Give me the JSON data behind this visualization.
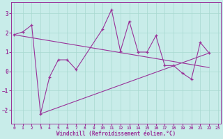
{
  "main_x": [
    0,
    1,
    2,
    3,
    4,
    5,
    6,
    7,
    10,
    11,
    12,
    13,
    14,
    15,
    16,
    17,
    18,
    19,
    20,
    21,
    22
  ],
  "main_y": [
    1.9,
    2.05,
    2.4,
    -2.2,
    -0.3,
    0.6,
    0.6,
    0.1,
    2.2,
    3.2,
    1.05,
    2.6,
    1.0,
    1.0,
    1.85,
    0.3,
    0.3,
    -0.1,
    -0.4,
    1.5,
    0.95
  ],
  "trend1_x": [
    0,
    22
  ],
  "trend1_y": [
    1.9,
    0.2
  ],
  "trend2_x": [
    3,
    22
  ],
  "trend2_y": [
    -2.2,
    0.95
  ],
  "bg_color": "#c8ece9",
  "line_color": "#993399",
  "grid_color": "#a8d8d0",
  "xlabel": "Windchill (Refroidissement éolien,°C)",
  "yticks": [
    -2,
    -1,
    0,
    1,
    2,
    3
  ],
  "xticks": [
    0,
    1,
    2,
    3,
    4,
    5,
    6,
    7,
    8,
    9,
    10,
    11,
    12,
    13,
    14,
    15,
    16,
    17,
    18,
    19,
    20,
    21,
    22,
    23
  ],
  "ylim": [
    -2.7,
    3.6
  ],
  "xlim": [
    -0.3,
    23.3
  ]
}
